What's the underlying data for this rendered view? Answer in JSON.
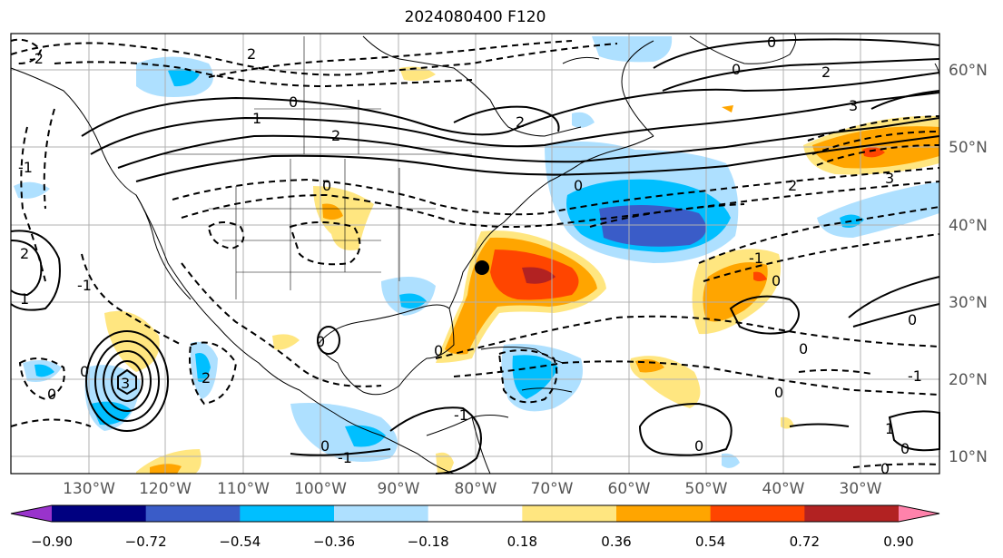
{
  "title": "2024080400 F120",
  "lon_labels": [
    "130°W",
    "120°W",
    "110°W",
    "100°W",
    "90°W",
    "80°W",
    "70°W",
    "60°W",
    "50°W",
    "40°W",
    "30°W"
  ],
  "lat_labels": [
    "60°N",
    "50°N",
    "40°N",
    "30°N",
    "20°N",
    "10°N"
  ],
  "colorbar": {
    "ticks": [
      "−0.90",
      "−0.72",
      "−0.54",
      "−0.36",
      "−0.18",
      "0.18",
      "0.36",
      "0.54",
      "0.72",
      "0.90"
    ],
    "colors": [
      "#9933cc",
      "#000080",
      "#3a5cc8",
      "#00bfff",
      "#aee0ff",
      "#ffffff",
      "#ffe680",
      "#ffa500",
      "#ff4500",
      "#b22222",
      "#ff82ab"
    ]
  },
  "contour_labels": [
    "-2",
    "-1",
    "0",
    "1",
    "2",
    "3",
    "-3"
  ],
  "colors": {
    "frame": "#000000",
    "grid": "#b0b0b0",
    "land_outline": "#000000"
  }
}
